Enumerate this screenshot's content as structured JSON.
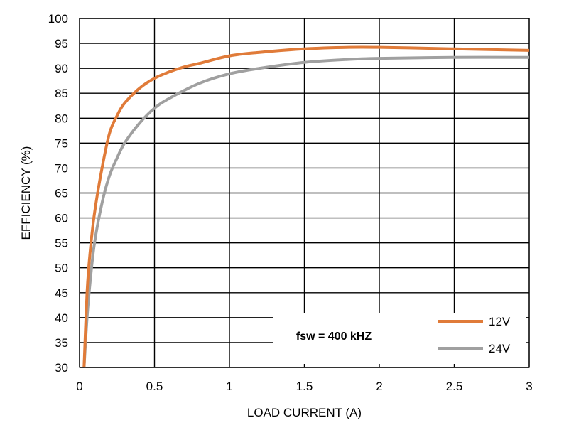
{
  "chart_data": {
    "type": "line",
    "xlabel": "LOAD CURRENT (A)",
    "ylabel": "EFFICIENCY (%)",
    "xlim": [
      0,
      3
    ],
    "ylim": [
      30,
      100
    ],
    "xticks": [
      0,
      0.5,
      1,
      1.5,
      2,
      2.5,
      3
    ],
    "xtick_labels": [
      "0",
      "0.5",
      "1",
      "1.5",
      "2",
      "2.5",
      "3"
    ],
    "yticks": [
      30,
      35,
      40,
      45,
      50,
      55,
      60,
      65,
      70,
      75,
      80,
      85,
      90,
      95,
      100
    ],
    "ytick_labels": [
      "30",
      "35",
      "40",
      "45",
      "50",
      "55",
      "60",
      "65",
      "70",
      "75",
      "80",
      "85",
      "90",
      "95",
      "100"
    ],
    "grid": true,
    "legend_position": "bottom-right",
    "annotation": "fsw = 400 kHZ",
    "series": [
      {
        "name": "12V",
        "color": "#E07B39",
        "x": [
          0.03,
          0.05,
          0.07,
          0.1,
          0.15,
          0.2,
          0.25,
          0.3,
          0.4,
          0.5,
          0.6,
          0.7,
          0.8,
          1.0,
          1.2,
          1.5,
          1.8,
          2.0,
          2.2,
          2.5,
          3.0
        ],
        "y": [
          30,
          45,
          53,
          61,
          70,
          77,
          80.5,
          83,
          86,
          88,
          89.3,
          90.3,
          91,
          92.5,
          93.2,
          93.9,
          94.2,
          94.2,
          94.1,
          93.9,
          93.6
        ]
      },
      {
        "name": "24V",
        "color": "#A0A0A0",
        "x": [
          0.03,
          0.05,
          0.07,
          0.1,
          0.15,
          0.2,
          0.25,
          0.3,
          0.4,
          0.5,
          0.6,
          0.8,
          1.0,
          1.2,
          1.5,
          1.8,
          2.0,
          2.5,
          3.0
        ],
        "y": [
          30,
          40,
          47,
          55,
          63,
          68.5,
          72,
          75,
          79,
          82,
          84,
          87,
          88.9,
          90,
          91.2,
          91.8,
          92.0,
          92.2,
          92.2
        ]
      }
    ]
  }
}
